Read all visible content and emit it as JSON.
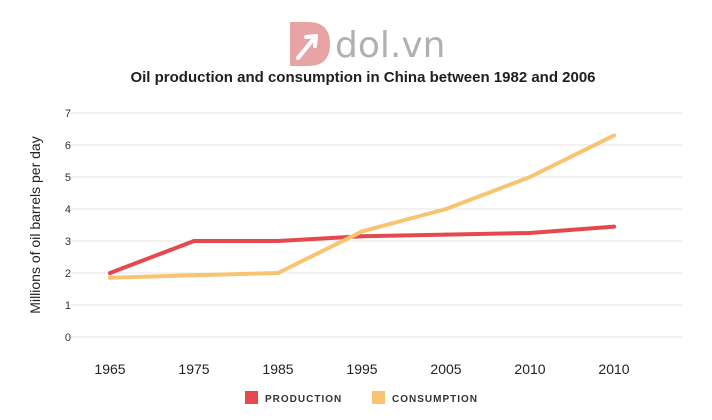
{
  "brand": {
    "logo_text": "dol.vn",
    "logo_color": "#e8a4a4"
  },
  "chart_data": {
    "type": "line",
    "title": "Oil production and consumption in China between 1982 and 2006",
    "xlabel": "",
    "ylabel": "Millions of oil barrels per day",
    "categories": [
      "1965",
      "1975",
      "1985",
      "1995",
      "2005",
      "2010",
      "2010"
    ],
    "yticks": [
      "0",
      "1",
      "2",
      "3",
      "4",
      "5",
      "6",
      "7"
    ],
    "ylim": [
      0,
      7
    ],
    "grid": true,
    "legend_position": "bottom",
    "series": [
      {
        "name": "PRODUCTION",
        "color": "#e5484d",
        "values": [
          2.0,
          3.0,
          3.0,
          3.15,
          3.2,
          3.25,
          3.45
        ]
      },
      {
        "name": "CONSUMPTION",
        "color": "#f8c471",
        "values": [
          1.85,
          1.93,
          2.0,
          3.3,
          4.0,
          5.0,
          6.3
        ]
      }
    ]
  }
}
